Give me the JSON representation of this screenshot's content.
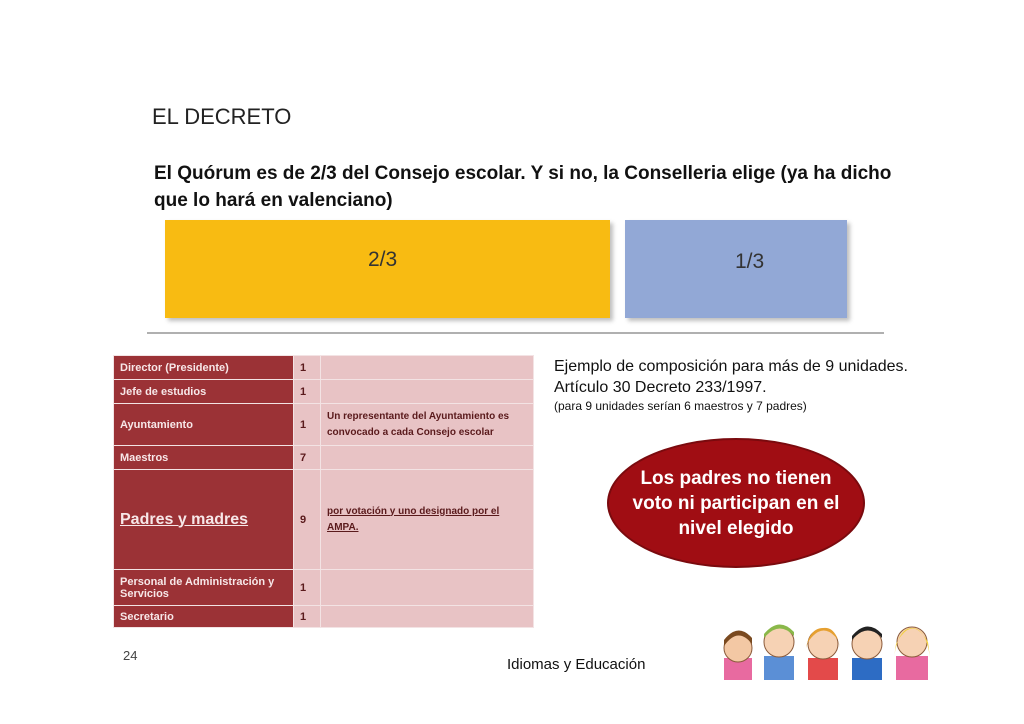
{
  "slide": {
    "title": "EL DECRETO",
    "subtitle": "El Quórum es de 2/3 del Consejo escolar. Y si no, la Conselleria elige (ya ha dicho que lo hará en valenciano)",
    "bars": [
      {
        "label": "2/3",
        "color": "#f8bb12"
      },
      {
        "label": "1/3",
        "color": "#92a8d6"
      }
    ],
    "table": [
      {
        "role": "Director (Presidente)",
        "count": "1",
        "detail": ""
      },
      {
        "role": "Jefe de estudios",
        "count": "1",
        "detail": ""
      },
      {
        "role": "Ayuntamiento",
        "count": "1",
        "detail": "Un representante del Ayuntamiento es convocado a cada Consejo escolar"
      },
      {
        "role": "Maestros",
        "count": "7",
        "detail": ""
      },
      {
        "role": "Padres y madres",
        "count": "9",
        "detail": "por votación y uno designado por el AMPA."
      },
      {
        "role": "Personal de Administración y Servicios",
        "count": "1",
        "detail": ""
      },
      {
        "role": "Secretario",
        "count": "1",
        "detail": ""
      }
    ],
    "note": {
      "main": "Ejemplo de composición para más de 9 unidades. Artículo 30 Decreto 233/1997.",
      "small": "(para 9 unidades serían 6 maestros y 7 padres)"
    },
    "callout": "Los padres no tienen voto ni participan en el nivel elegido",
    "page_number": "24",
    "footer": "Idiomas y Educación",
    "colors": {
      "table_key": "#9b3236",
      "table_value": "#e8c3c5",
      "callout": "#a00d13"
    }
  }
}
